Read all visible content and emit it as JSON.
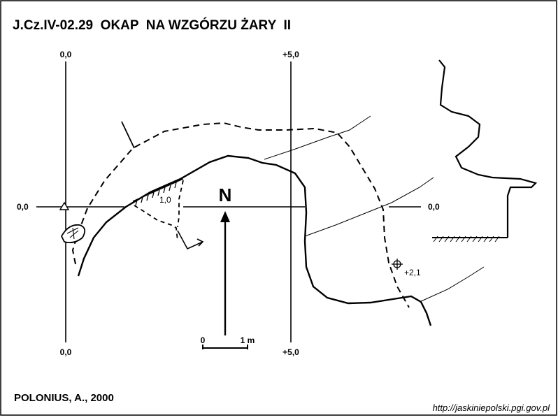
{
  "title": "J.Cz.IV-02.29  OKAP  NA WZGÓRZU ŻARY  II",
  "grid_labels": {
    "top_left": "0,0",
    "top_right": "+5,0",
    "left": "0,0",
    "right": "0,0",
    "bottom_left": "0,0",
    "bottom_right": "+5,0"
  },
  "north_label": "N",
  "scale": {
    "start": "0",
    "end": "1 m"
  },
  "annotations": {
    "depth_inner": "1,0",
    "depth_point": "+2,1"
  },
  "author": "POLONIUS, A., 2000",
  "source_url": "http://jaskiniepolski.pgi.gov.pl"
}
